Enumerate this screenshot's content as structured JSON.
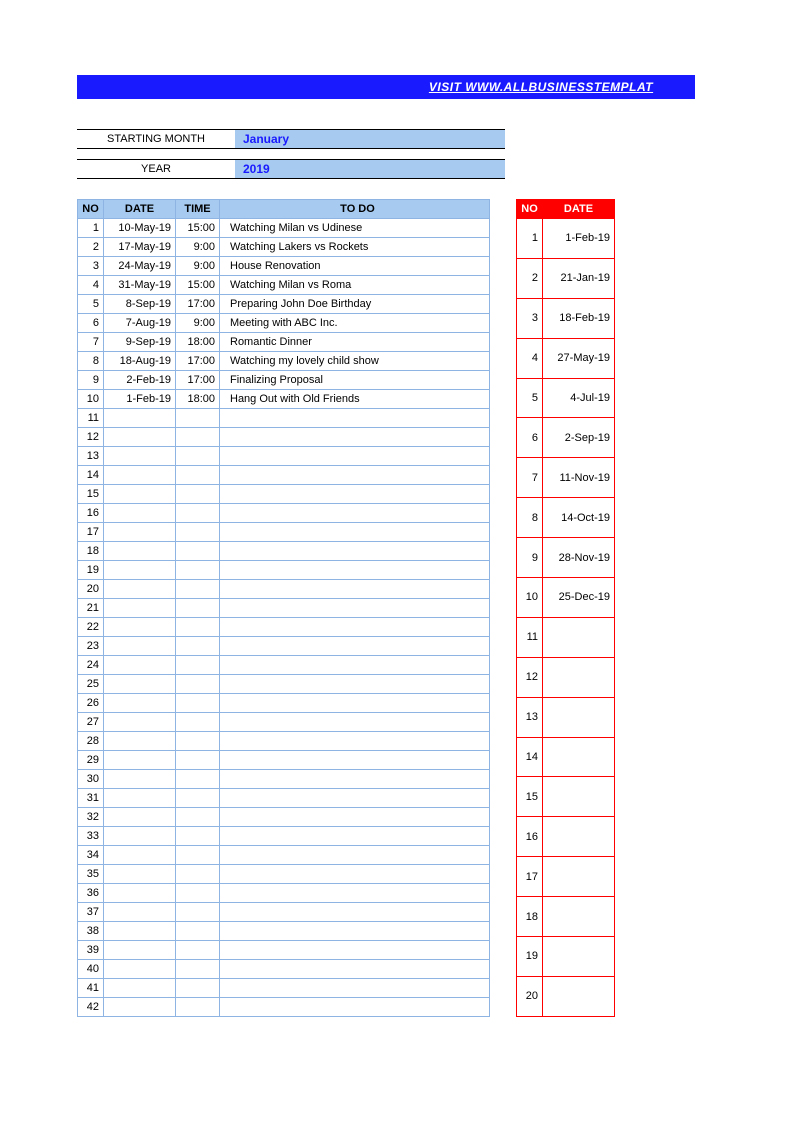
{
  "banner": {
    "text": "VISIT  WWW.ALLBUSINESSTEMPLAT",
    "bg_color": "#1a1aff",
    "text_color": "#ffffff"
  },
  "config": {
    "month_label": "STARTING MONTH",
    "month_value": "January",
    "month_value_bg": "#a6caf0",
    "month_value_color": "#1a1aff",
    "year_label": "YEAR",
    "year_value": "2019",
    "year_value_bg": "#a6caf0",
    "year_value_color": "#1a1aff"
  },
  "todo_table": {
    "header_bg": "#a6caf0",
    "border_color": "#8db4e2",
    "text_color": "#000000",
    "total_rows": 42,
    "columns": {
      "no": "NO",
      "date": "DATE",
      "time": "TIME",
      "todo": "TO DO"
    },
    "rows": [
      {
        "no": 1,
        "date": "10-May-19",
        "time": "15:00",
        "todo": "Watching Milan vs Udinese"
      },
      {
        "no": 2,
        "date": "17-May-19",
        "time": "9:00",
        "todo": "Watching Lakers vs Rockets"
      },
      {
        "no": 3,
        "date": "24-May-19",
        "time": "9:00",
        "todo": "House Renovation"
      },
      {
        "no": 4,
        "date": "31-May-19",
        "time": "15:00",
        "todo": "Watching Milan vs Roma"
      },
      {
        "no": 5,
        "date": "8-Sep-19",
        "time": "17:00",
        "todo": "Preparing John Doe Birthday"
      },
      {
        "no": 6,
        "date": "7-Aug-19",
        "time": "9:00",
        "todo": "Meeting with ABC Inc."
      },
      {
        "no": 7,
        "date": "9-Sep-19",
        "time": "18:00",
        "todo": "Romantic Dinner"
      },
      {
        "no": 8,
        "date": "18-Aug-19",
        "time": "17:00",
        "todo": "Watching my lovely child show"
      },
      {
        "no": 9,
        "date": "2-Feb-19",
        "time": "17:00",
        "todo": "Finalizing Proposal"
      },
      {
        "no": 10,
        "date": "1-Feb-19",
        "time": "18:00",
        "todo": "Hang Out with Old Friends"
      }
    ]
  },
  "date_table": {
    "header_bg": "#ff0000",
    "border_color": "#ff0000",
    "text_color": "#000000",
    "total_rows": 20,
    "columns": {
      "no": "NO",
      "date": "DATE"
    },
    "rows": [
      {
        "no": 1,
        "date": "1-Feb-19"
      },
      {
        "no": 2,
        "date": "21-Jan-19"
      },
      {
        "no": 3,
        "date": "18-Feb-19"
      },
      {
        "no": 4,
        "date": "27-May-19"
      },
      {
        "no": 5,
        "date": "4-Jul-19"
      },
      {
        "no": 6,
        "date": "2-Sep-19"
      },
      {
        "no": 7,
        "date": "11-Nov-19"
      },
      {
        "no": 8,
        "date": "14-Oct-19"
      },
      {
        "no": 9,
        "date": "28-Nov-19"
      },
      {
        "no": 10,
        "date": "25-Dec-19"
      }
    ]
  }
}
